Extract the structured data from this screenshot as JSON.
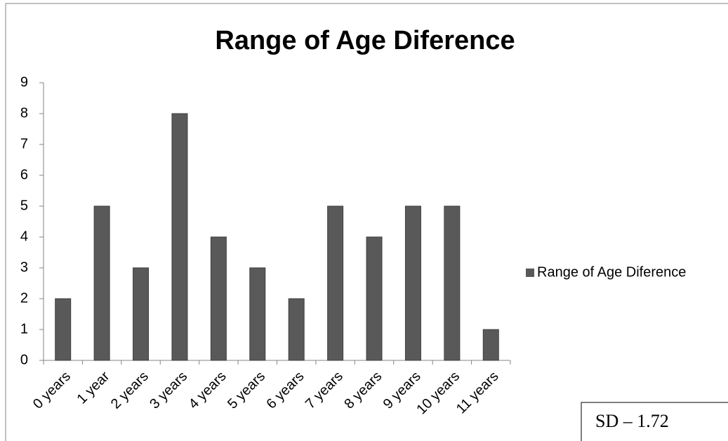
{
  "chart_data": {
    "type": "bar",
    "title": "Range of Age Diference",
    "categories": [
      "0 years",
      "1 year",
      "2 years",
      "3 years",
      "4 years",
      "5 years",
      "6 years",
      "7 years",
      "8 years",
      "9 years",
      "10 years",
      "11 years"
    ],
    "series": [
      {
        "name": "Range of Age Diference",
        "color": "#595959",
        "values": [
          2,
          5,
          3,
          8,
          4,
          3,
          2,
          5,
          4,
          5,
          5,
          1
        ]
      }
    ],
    "ylim": [
      0,
      9
    ],
    "yticks": [
      0,
      1,
      2,
      3,
      4,
      5,
      6,
      7,
      8,
      9
    ],
    "grid": false,
    "legend": "right",
    "annotation": "SD – 1.72"
  }
}
